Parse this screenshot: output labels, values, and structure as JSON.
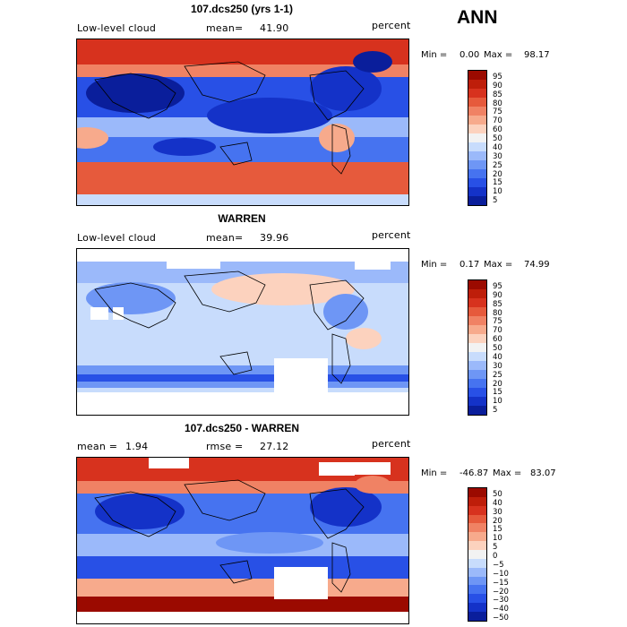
{
  "season": "ANN",
  "panels": [
    {
      "title": "107.dcs250 (yrs 1-1)",
      "left_label": "Low-level cloud",
      "stat_label": "mean=",
      "stat_value": "41.90",
      "units": "percent",
      "min_label": "Min =",
      "min_value": "0.00",
      "max_label": "Max =",
      "max_value": "98.17",
      "levels": [
        "95",
        "90",
        "85",
        "80",
        "75",
        "70",
        "60",
        "50",
        "40",
        "30",
        "25",
        "20",
        "15",
        "10",
        "5"
      ]
    },
    {
      "title": "WARREN",
      "left_label": "Low-level cloud",
      "stat_label": "mean=",
      "stat_value": "39.96",
      "units": "percent",
      "min_label": "Min =",
      "min_value": "0.17",
      "max_label": "Max =",
      "max_value": "74.99",
      "levels": [
        "95",
        "90",
        "85",
        "80",
        "75",
        "70",
        "60",
        "50",
        "40",
        "30",
        "25",
        "20",
        "15",
        "10",
        "5"
      ]
    },
    {
      "title": "107.dcs250 - WARREN",
      "left_label": "mean =",
      "left_value": "1.94",
      "stat_label": "rmse =",
      "stat_value": "27.12",
      "units": "percent",
      "min_label": "Min =",
      "min_value": "-46.87",
      "max_label": "Max =",
      "max_value": "83.07",
      "levels": [
        "50",
        "40",
        "30",
        "20",
        "15",
        "10",
        "5",
        "0",
        "−5",
        "−10",
        "−15",
        "−20",
        "−30",
        "−40",
        "−50"
      ]
    }
  ],
  "palette": [
    "#0a1e9b",
    "#1432c8",
    "#2850e6",
    "#4673f0",
    "#6e96f5",
    "#9bb9fa",
    "#c8dcfc",
    "#f2f2f2",
    "#fcd2be",
    "#f7aa8c",
    "#f08264",
    "#e65a3c",
    "#d7321e",
    "#be1e0a",
    "#9b0a00"
  ]
}
